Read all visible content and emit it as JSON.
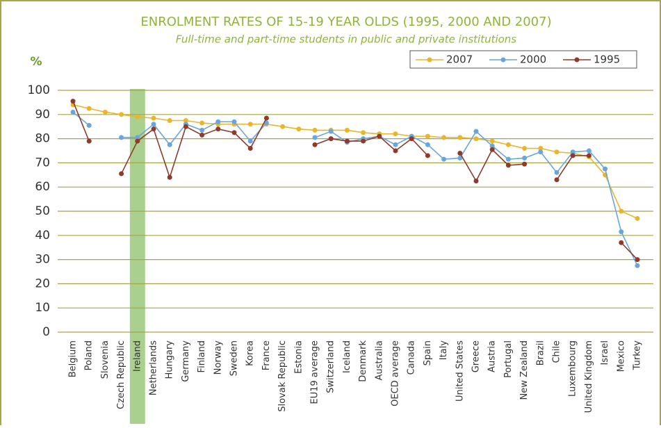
{
  "chart_data": {
    "type": "line",
    "title": "ENROLMENT RATES OF 15-19 YEAR OLDS (1995, 2000 AND 2007)",
    "subtitle": "Full-time and part-time students in public and private institutions",
    "y_label": "%",
    "categories": [
      "Belgium",
      "Poland",
      "Slovenia",
      "Czech Republic",
      "Ireland",
      "Netherlands",
      "Hungary",
      "Germany",
      "Finland",
      "Norway",
      "Sweden",
      "Korea",
      "France",
      "Slovak Republic",
      "Estonia",
      "EU19 average",
      "Switzerland",
      "Iceland",
      "Denmark",
      "Australia",
      "OECD average",
      "Canada",
      "Spain",
      "Italy",
      "United States",
      "Greece",
      "Austria",
      "Portugal",
      "New Zealand",
      "Brazil",
      "Chile",
      "Luxembourg",
      "United Kingdom",
      "Israel",
      "Mexico",
      "Turkey"
    ],
    "series": [
      {
        "name": "2007",
        "color": "#e8b62c",
        "values": [
          94,
          92.5,
          91,
          90,
          89,
          88.5,
          87.5,
          87.5,
          86.5,
          86,
          86,
          86,
          86,
          85,
          84,
          83.5,
          83.5,
          83.5,
          82.5,
          82,
          82,
          81,
          81,
          80.5,
          80.5,
          80,
          79,
          77.5,
          76,
          76,
          74.5,
          74,
          72.5,
          65,
          50,
          47
        ]
      },
      {
        "name": "2000",
        "color": "#6aa6dc",
        "values": [
          91,
          85.5,
          null,
          80.5,
          80.5,
          86,
          77.5,
          86,
          83.5,
          87,
          87,
          79,
          86.5,
          null,
          null,
          80.5,
          83,
          78.5,
          80,
          81,
          77.5,
          81,
          77.5,
          71.5,
          72,
          83,
          77,
          71.5,
          72,
          74.5,
          66,
          74.5,
          75,
          67.5,
          41.5,
          27.5
        ]
      },
      {
        "name": "1995",
        "color": "#8e3b2b",
        "values": [
          95.5,
          79,
          null,
          65.5,
          79,
          84,
          64,
          85,
          81.5,
          84,
          82.5,
          76,
          88.5,
          null,
          null,
          77.5,
          80,
          79,
          79,
          81,
          75,
          80,
          73,
          null,
          74,
          62.5,
          75.5,
          69,
          69.5,
          null,
          63,
          73,
          73,
          null,
          37,
          30
        ]
      }
    ],
    "ylim": [
      0,
      100
    ],
    "yticks": [
      0,
      10,
      20,
      30,
      40,
      50,
      60,
      70,
      80,
      90,
      100
    ],
    "grid": true,
    "highlight": 4,
    "highlight_color": "#a9d08e"
  }
}
